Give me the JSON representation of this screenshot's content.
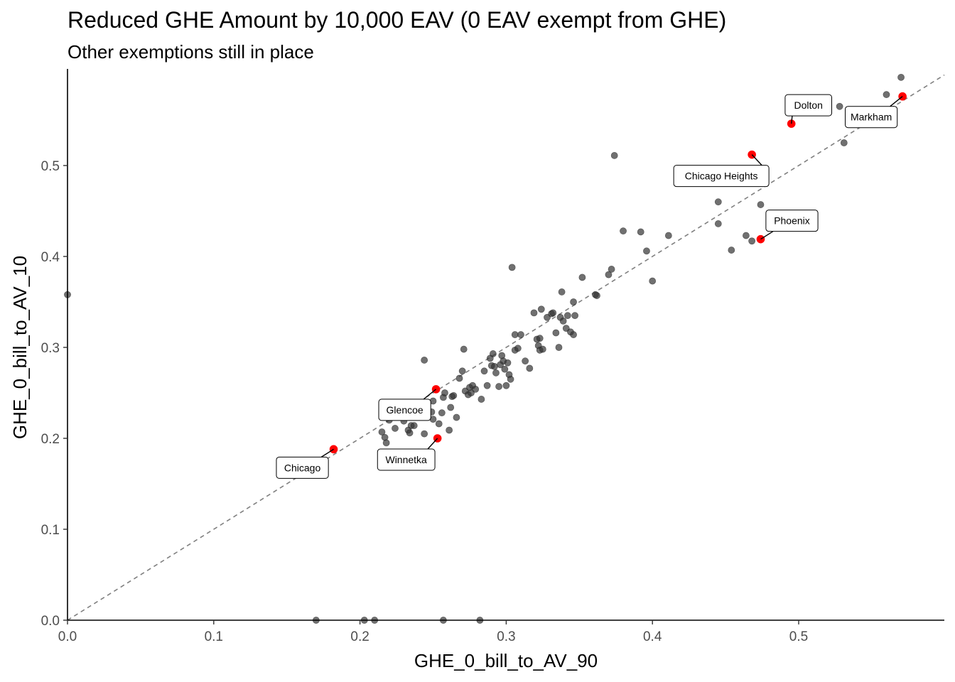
{
  "chart_data": {
    "type": "scatter",
    "title": "Reduced GHE Amount by 10,000 EAV (0 EAV exempt from GHE)",
    "subtitle": "Other exemptions still in place",
    "xlabel": "GHE_0_bill_to_AV_90",
    "ylabel": "GHE_0_bill_to_AV_10",
    "xlim": [
      0.0,
      0.6
    ],
    "ylim": [
      0.0,
      0.6
    ],
    "x_ticks": [
      0.0,
      0.1,
      0.2,
      0.3,
      0.4,
      0.5
    ],
    "x_tick_labels": [
      "0.0",
      "0.1",
      "0.2",
      "0.3",
      "0.4",
      "0.5"
    ],
    "y_ticks": [
      0.0,
      0.1,
      0.2,
      0.3,
      0.4,
      0.5
    ],
    "y_tick_labels": [
      "0.0",
      "0.1",
      "0.2",
      "0.3",
      "0.4",
      "0.5"
    ],
    "reference_line": "y = x, dashed gray",
    "grid": false,
    "colors": {
      "points": "#333333",
      "highlight": "#ff0000",
      "reference_line": "#808080"
    },
    "points": [
      [
        0.0,
        0.358
      ],
      [
        0.17,
        0.0
      ],
      [
        0.203,
        0.0
      ],
      [
        0.21,
        0.0
      ],
      [
        0.257,
        0.0
      ],
      [
        0.282,
        0.0
      ],
      [
        0.215,
        0.207
      ],
      [
        0.217,
        0.201
      ],
      [
        0.218,
        0.195
      ],
      [
        0.22,
        0.22
      ],
      [
        0.224,
        0.211
      ],
      [
        0.23,
        0.219
      ],
      [
        0.233,
        0.209
      ],
      [
        0.234,
        0.206
      ],
      [
        0.235,
        0.214
      ],
      [
        0.237,
        0.214
      ],
      [
        0.244,
        0.205
      ],
      [
        0.244,
        0.286
      ],
      [
        0.249,
        0.229
      ],
      [
        0.25,
        0.241
      ],
      [
        0.25,
        0.221
      ],
      [
        0.254,
        0.216
      ],
      [
        0.256,
        0.228
      ],
      [
        0.257,
        0.245
      ],
      [
        0.258,
        0.25
      ],
      [
        0.261,
        0.209
      ],
      [
        0.262,
        0.234
      ],
      [
        0.263,
        0.246
      ],
      [
        0.264,
        0.247
      ],
      [
        0.266,
        0.223
      ],
      [
        0.268,
        0.266
      ],
      [
        0.27,
        0.274
      ],
      [
        0.271,
        0.298
      ],
      [
        0.272,
        0.252
      ],
      [
        0.274,
        0.248
      ],
      [
        0.275,
        0.256
      ],
      [
        0.276,
        0.25
      ],
      [
        0.277,
        0.258
      ],
      [
        0.279,
        0.254
      ],
      [
        0.283,
        0.243
      ],
      [
        0.285,
        0.274
      ],
      [
        0.287,
        0.258
      ],
      [
        0.289,
        0.288
      ],
      [
        0.29,
        0.28
      ],
      [
        0.291,
        0.293
      ],
      [
        0.292,
        0.279
      ],
      [
        0.293,
        0.272
      ],
      [
        0.295,
        0.257
      ],
      [
        0.296,
        0.281
      ],
      [
        0.297,
        0.291
      ],
      [
        0.298,
        0.285
      ],
      [
        0.299,
        0.276
      ],
      [
        0.3,
        0.258
      ],
      [
        0.301,
        0.283
      ],
      [
        0.302,
        0.27
      ],
      [
        0.303,
        0.265
      ],
      [
        0.304,
        0.388
      ],
      [
        0.306,
        0.314
      ],
      [
        0.306,
        0.297
      ],
      [
        0.308,
        0.299
      ],
      [
        0.31,
        0.314
      ],
      [
        0.313,
        0.285
      ],
      [
        0.316,
        0.277
      ],
      [
        0.319,
        0.338
      ],
      [
        0.321,
        0.309
      ],
      [
        0.322,
        0.302
      ],
      [
        0.323,
        0.31
      ],
      [
        0.323,
        0.297
      ],
      [
        0.324,
        0.342
      ],
      [
        0.325,
        0.298
      ],
      [
        0.328,
        0.333
      ],
      [
        0.331,
        0.337
      ],
      [
        0.332,
        0.338
      ],
      [
        0.334,
        0.316
      ],
      [
        0.336,
        0.3
      ],
      [
        0.337,
        0.333
      ],
      [
        0.338,
        0.361
      ],
      [
        0.339,
        0.329
      ],
      [
        0.341,
        0.321
      ],
      [
        0.342,
        0.335
      ],
      [
        0.344,
        0.317
      ],
      [
        0.346,
        0.35
      ],
      [
        0.346,
        0.314
      ],
      [
        0.347,
        0.335
      ],
      [
        0.352,
        0.377
      ],
      [
        0.361,
        0.358
      ],
      [
        0.362,
        0.357
      ],
      [
        0.37,
        0.38
      ],
      [
        0.372,
        0.386
      ],
      [
        0.374,
        0.511
      ],
      [
        0.38,
        0.428
      ],
      [
        0.392,
        0.427
      ],
      [
        0.396,
        0.406
      ],
      [
        0.4,
        0.373
      ],
      [
        0.411,
        0.423
      ],
      [
        0.445,
        0.46
      ],
      [
        0.445,
        0.436
      ],
      [
        0.454,
        0.407
      ],
      [
        0.464,
        0.423
      ],
      [
        0.468,
        0.417
      ],
      [
        0.474,
        0.457
      ],
      [
        0.528,
        0.565
      ],
      [
        0.531,
        0.525
      ],
      [
        0.56,
        0.578
      ],
      [
        0.57,
        0.597
      ]
    ],
    "highlighted_points": [
      {
        "label": "Chicago",
        "x": 0.182,
        "y": 0.188
      },
      {
        "label": "Winnetka",
        "x": 0.253,
        "y": 0.2
      },
      {
        "label": "Glencoe",
        "x": 0.252,
        "y": 0.254
      },
      {
        "label": "Chicago Heights",
        "x": 0.468,
        "y": 0.512
      },
      {
        "label": "Phoenix",
        "x": 0.474,
        "y": 0.419
      },
      {
        "label": "Dolton",
        "x": 0.495,
        "y": 0.546
      },
      {
        "label": "Markham",
        "x": 0.571,
        "y": 0.576
      }
    ]
  }
}
